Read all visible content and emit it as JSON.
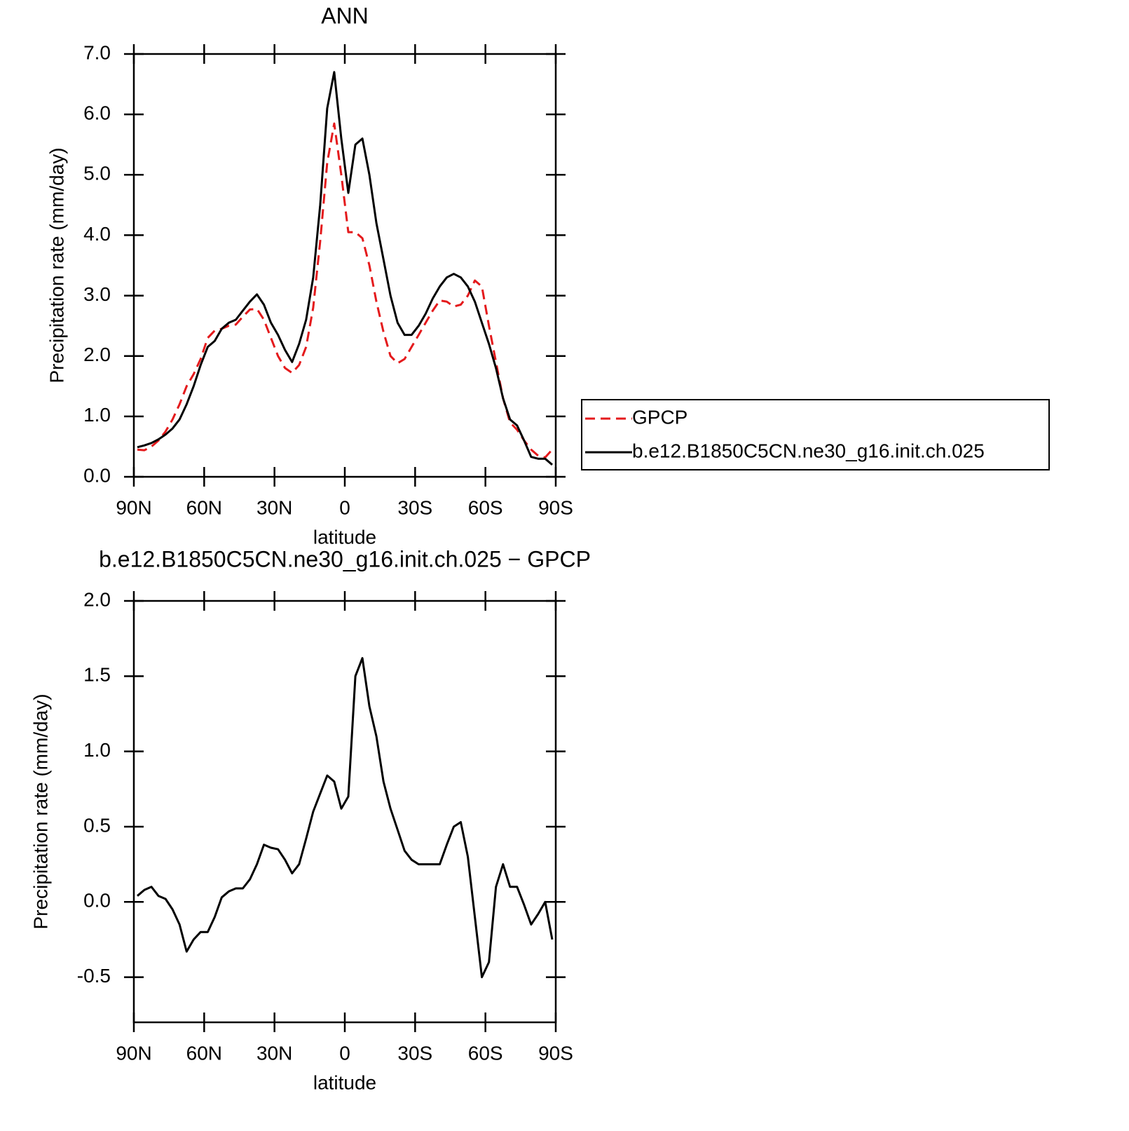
{
  "chart_data": [
    {
      "type": "line",
      "title": "ANN",
      "xlabel": "latitude",
      "ylabel": "Precipitation rate (mm/day)",
      "x": [
        88.5,
        85.5,
        82.5,
        79.5,
        76.5,
        73.5,
        70.5,
        67.5,
        64.5,
        61.5,
        58.5,
        55.5,
        52.5,
        49.5,
        46.5,
        43.5,
        40.5,
        37.5,
        34.5,
        31.5,
        28.5,
        25.5,
        22.5,
        19.5,
        16.5,
        13.5,
        10.5,
        7.5,
        4.5,
        1.5,
        -1.5,
        -4.5,
        -7.5,
        -10.5,
        -13.5,
        -16.5,
        -19.5,
        -22.5,
        -25.5,
        -28.5,
        -31.5,
        -34.5,
        -37.5,
        -40.5,
        -43.5,
        -46.5,
        -49.5,
        -52.5,
        -55.5,
        -58.5,
        -61.5,
        -64.5,
        -67.5,
        -70.5,
        -73.5,
        -76.5,
        -79.5,
        -82.5,
        -85.5,
        -88.5
      ],
      "series": [
        {
          "name": "GPCP",
          "color": "#e41a1c",
          "dashed": true,
          "values": [
            0.45,
            0.44,
            0.5,
            0.6,
            0.75,
            0.95,
            1.2,
            1.5,
            1.7,
            1.95,
            2.3,
            2.42,
            2.45,
            2.5,
            2.52,
            2.65,
            2.77,
            2.78,
            2.6,
            2.3,
            2.0,
            1.8,
            1.72,
            1.85,
            2.15,
            2.8,
            3.9,
            5.2,
            5.85,
            5.0,
            4.05,
            4.05,
            3.95,
            3.5,
            2.9,
            2.4,
            2.0,
            1.88,
            1.95,
            2.15,
            2.35,
            2.55,
            2.75,
            2.92,
            2.9,
            2.82,
            2.85,
            3.0,
            3.25,
            3.15,
            2.5,
            1.9,
            1.3,
            0.9,
            0.78,
            0.6,
            0.45,
            0.35,
            0.32,
            0.45
          ]
        },
        {
          "name": "b.e12.B1850C5CN.ne30_g16.init.ch.025",
          "color": "#000000",
          "dashed": false,
          "values": [
            0.49,
            0.52,
            0.56,
            0.62,
            0.7,
            0.8,
            0.95,
            1.2,
            1.5,
            1.85,
            2.15,
            2.25,
            2.45,
            2.55,
            2.6,
            2.75,
            2.9,
            3.02,
            2.85,
            2.55,
            2.35,
            2.1,
            1.9,
            2.2,
            2.6,
            3.3,
            4.5,
            6.1,
            6.7,
            5.6,
            4.7,
            5.5,
            5.6,
            5.0,
            4.2,
            3.6,
            3.0,
            2.55,
            2.35,
            2.35,
            2.5,
            2.7,
            2.95,
            3.15,
            3.3,
            3.36,
            3.3,
            3.15,
            2.9,
            2.55,
            2.2,
            1.8,
            1.3,
            0.95,
            0.85,
            0.6,
            0.33,
            0.3,
            0.3,
            0.2
          ]
        }
      ],
      "xlim": [
        90,
        -90
      ],
      "xticks": [
        {
          "value": 90,
          "label": "90N"
        },
        {
          "value": 60,
          "label": "60N"
        },
        {
          "value": 30,
          "label": "30N"
        },
        0,
        {
          "value": -30,
          "label": "30S"
        },
        {
          "value": -60,
          "label": "60S"
        },
        {
          "value": -90,
          "label": "90S"
        }
      ],
      "ylim": [
        0,
        7
      ],
      "yticks": [
        {
          "value": 0,
          "label": "0.0"
        },
        {
          "value": 1,
          "label": "1.0"
        },
        {
          "value": 2,
          "label": "2.0"
        },
        {
          "value": 3,
          "label": "3.0"
        },
        {
          "value": 4,
          "label": "4.0"
        },
        {
          "value": 5,
          "label": "5.0"
        },
        {
          "value": 6,
          "label": "6.0"
        },
        {
          "value": 7,
          "label": "7.0"
        }
      ],
      "legend": "right"
    },
    {
      "type": "line",
      "title": "b.e12.B1850C5CN.ne30_g16.init.ch.025 − GPCP",
      "xlabel": "latitude",
      "ylabel": "Precipitation rate (mm/day)",
      "x": [
        88.5,
        85.5,
        82.5,
        79.5,
        76.5,
        73.5,
        70.5,
        67.5,
        64.5,
        61.5,
        58.5,
        55.5,
        52.5,
        49.5,
        46.5,
        43.5,
        40.5,
        37.5,
        34.5,
        31.5,
        28.5,
        25.5,
        22.5,
        19.5,
        16.5,
        13.5,
        10.5,
        7.5,
        4.5,
        1.5,
        -1.5,
        -4.5,
        -7.5,
        -10.5,
        -13.5,
        -16.5,
        -19.5,
        -22.5,
        -25.5,
        -28.5,
        -31.5,
        -34.5,
        -37.5,
        -40.5,
        -43.5,
        -46.5,
        -49.5,
        -52.5,
        -55.5,
        -58.5,
        -61.5,
        -64.5,
        -67.5,
        -70.5,
        -73.5,
        -76.5,
        -79.5,
        -82.5,
        -85.5,
        -88.5
      ],
      "values": [
        0.04,
        0.08,
        0.1,
        0.04,
        0.02,
        -0.05,
        -0.15,
        -0.33,
        -0.25,
        -0.2,
        -0.2,
        -0.1,
        0.03,
        0.07,
        0.09,
        0.09,
        0.15,
        0.25,
        0.38,
        0.36,
        0.35,
        0.28,
        0.19,
        0.25,
        0.42,
        0.6,
        0.72,
        0.84,
        0.8,
        0.62,
        0.7,
        1.5,
        1.62,
        1.3,
        1.1,
        0.8,
        0.62,
        0.48,
        0.34,
        0.28,
        0.25,
        0.25,
        0.25,
        0.25,
        0.38,
        0.5,
        0.53,
        0.3,
        -0.1,
        -0.5,
        -0.4,
        0.1,
        0.25,
        0.1,
        0.1,
        -0.02,
        -0.15,
        -0.08,
        0.0,
        -0.25
      ],
      "color": "#000000",
      "xlim": [
        90,
        -90
      ],
      "xticks": [
        {
          "value": 90,
          "label": "90N"
        },
        {
          "value": 60,
          "label": "60N"
        },
        {
          "value": 30,
          "label": "30N"
        },
        0,
        {
          "value": -30,
          "label": "30S"
        },
        {
          "value": -60,
          "label": "60S"
        },
        {
          "value": -90,
          "label": "90S"
        }
      ],
      "ylim": [
        -0.8,
        2.0
      ],
      "yticks": [
        -0.5,
        {
          "value": 0,
          "label": "0.0"
        },
        0.5,
        {
          "value": 1,
          "label": "1.0"
        },
        1.5,
        {
          "value": 2,
          "label": "2.0"
        }
      ]
    }
  ]
}
